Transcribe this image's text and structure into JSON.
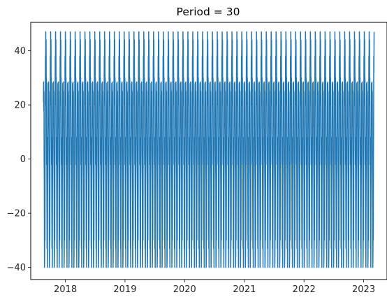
{
  "chart_data": {
    "type": "line",
    "title": "Period = 30",
    "xlabel": "",
    "ylabel": "",
    "x_range": [
      "2017-08-20",
      "2023-03-06"
    ],
    "xlim": [
      "2017-06-03",
      "2023-05-24"
    ],
    "ylim": [
      -44.5,
      50.5
    ],
    "x_ticks": [
      "2018",
      "2019",
      "2020",
      "2021",
      "2022",
      "2023"
    ],
    "y_ticks": [
      -40,
      -20,
      0,
      20,
      40
    ],
    "period_days": 30,
    "cycle_values": [
      21,
      28.5,
      18,
      25,
      0,
      -8,
      -40,
      -36,
      -22,
      -30,
      0,
      12,
      38,
      32,
      47,
      20,
      44,
      24,
      30,
      -2,
      8,
      -12,
      -33,
      -28,
      -40,
      -15,
      0,
      16,
      28,
      12
    ],
    "grid": false,
    "line_color": "#1f77b4"
  }
}
